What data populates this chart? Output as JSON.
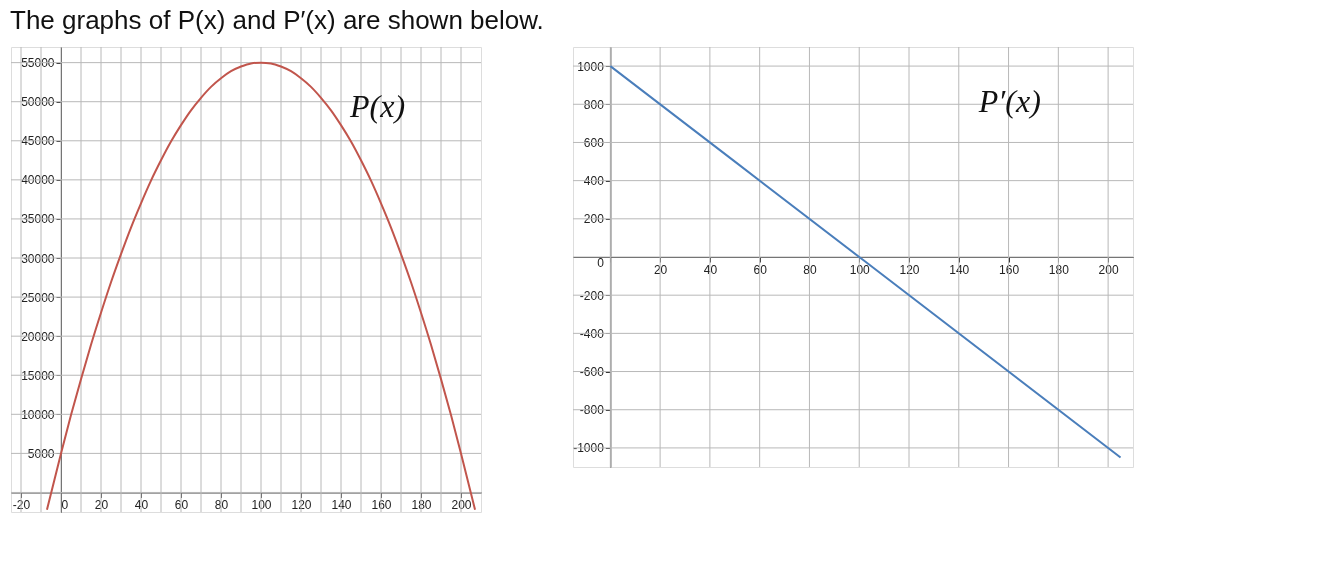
{
  "chart_data": [
    {
      "type": "line",
      "title": "The graphs of P(x) and P′(x) are shown below.",
      "x": [
        -7,
        0,
        5,
        10,
        15,
        20,
        25,
        30,
        35,
        40,
        45,
        50,
        55,
        60,
        65,
        70,
        75,
        80,
        85,
        90,
        95,
        100,
        105,
        110,
        115,
        120,
        125,
        130,
        135,
        140,
        145,
        150,
        155,
        160,
        165,
        170,
        175,
        180,
        185,
        190,
        195,
        200,
        207
      ],
      "series": [
        {
          "color": "#c1554c",
          "values": [
            -2200,
            5000,
            9900,
            14500,
            18900,
            23000,
            26900,
            30500,
            33900,
            37000,
            39900,
            42500,
            44900,
            47000,
            48900,
            50500,
            51900,
            53000,
            53900,
            54500,
            54900,
            55000,
            54900,
            54500,
            53900,
            53000,
            51900,
            50500,
            48900,
            47000,
            44900,
            42500,
            39900,
            37000,
            33900,
            30500,
            26900,
            23000,
            18900,
            14500,
            9900,
            5000,
            -2200
          ]
        }
      ],
      "xlim": [
        -25,
        210
      ],
      "ylim": [
        -2500,
        57000
      ],
      "xticks": [
        -20,
        {
          "value": -10,
          "label": null
        },
        0,
        {
          "value": 10,
          "label": null
        },
        20,
        {
          "value": 30,
          "label": null
        },
        40,
        {
          "value": 50,
          "label": null
        },
        60,
        {
          "value": 70,
          "label": null
        },
        80,
        {
          "value": 90,
          "label": null
        },
        100,
        {
          "value": 110,
          "label": null
        },
        120,
        {
          "value": 130,
          "label": null
        },
        140,
        {
          "value": 150,
          "label": null
        },
        160,
        {
          "value": 170,
          "label": null
        },
        180,
        {
          "value": 190,
          "label": null
        },
        200
      ],
      "yticks": [
        {
          "value": 0,
          "label": null
        },
        5000,
        10000,
        15000,
        20000,
        25000,
        30000,
        35000,
        40000,
        45000,
        50000,
        55000
      ],
      "grid": true,
      "annotations": [
        "P(x)"
      ]
    },
    {
      "type": "line",
      "x": [
        0,
        100,
        205
      ],
      "series": [
        {
          "color": "#4a7ebb",
          "values": [
            1000,
            0,
            -1050
          ]
        }
      ],
      "xlim": [
        -15,
        210
      ],
      "ylim": [
        -1100,
        1100
      ],
      "xticks": [
        {
          "value": 0,
          "label": null
        },
        20,
        40,
        60,
        80,
        100,
        120,
        140,
        160,
        180,
        200
      ],
      "yticks": [
        -1000,
        -800,
        -600,
        -400,
        -200,
        0,
        200,
        400,
        600,
        800,
        1000
      ],
      "grid": true,
      "annotations": [
        "P′(x)"
      ]
    }
  ]
}
